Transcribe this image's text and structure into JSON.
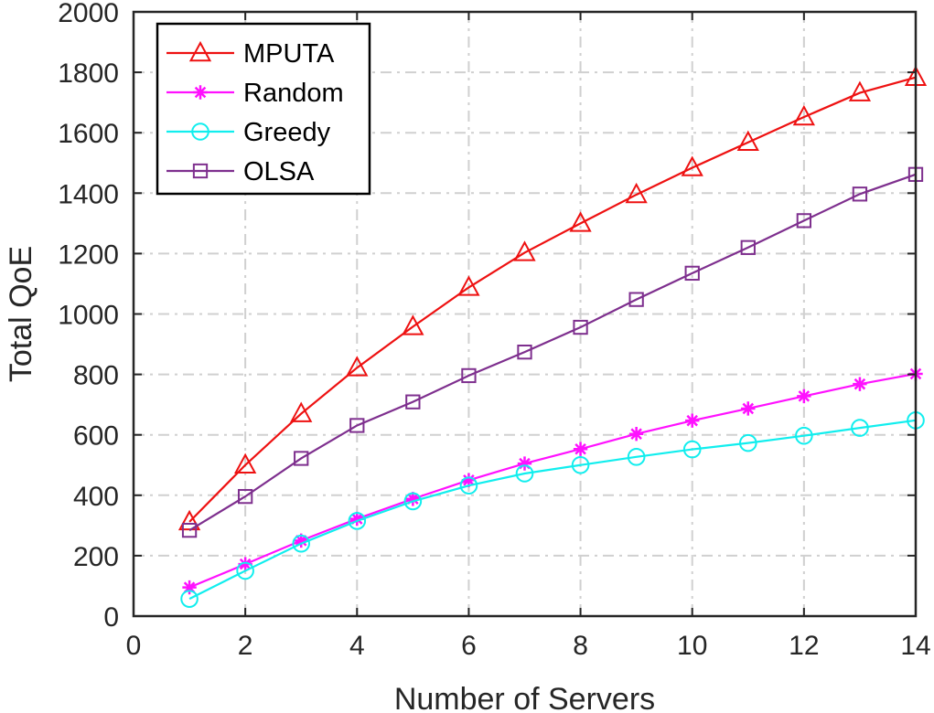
{
  "chart_data": {
    "type": "line",
    "xlabel": "Number of Servers",
    "ylabel": "Total QoE",
    "xlim": [
      0,
      14
    ],
    "ylim": [
      0,
      2000
    ],
    "xticks": [
      0,
      2,
      4,
      6,
      8,
      10,
      12,
      14
    ],
    "yticks": [
      0,
      200,
      400,
      600,
      800,
      1000,
      1200,
      1400,
      1600,
      1800,
      2000
    ],
    "grid": true,
    "legend_position": "top-left",
    "x": [
      1,
      2,
      3,
      4,
      5,
      6,
      7,
      8,
      9,
      10,
      11,
      12,
      13,
      14
    ],
    "series": [
      {
        "name": "MPUTA",
        "color": "#ee1111",
        "marker": "triangle",
        "values": [
          312,
          500,
          670,
          822,
          958,
          1088,
          1203,
          1300,
          1395,
          1484,
          1568,
          1652,
          1732,
          1783
        ]
      },
      {
        "name": "Random",
        "color": "#ff11ff",
        "marker": "asterisk",
        "values": [
          95,
          172,
          250,
          322,
          388,
          450,
          505,
          553,
          603,
          647,
          687,
          728,
          768,
          802
        ]
      },
      {
        "name": "Greedy",
        "color": "#11eeee",
        "marker": "circle",
        "values": [
          57,
          150,
          240,
          315,
          380,
          432,
          472,
          500,
          527,
          552,
          573,
          597,
          623,
          648
        ]
      },
      {
        "name": "OLSA",
        "color": "#7e2f8e",
        "marker": "square",
        "values": [
          284,
          396,
          522,
          631,
          709,
          796,
          874,
          956,
          1048,
          1135,
          1220,
          1309,
          1397,
          1462
        ]
      }
    ]
  }
}
